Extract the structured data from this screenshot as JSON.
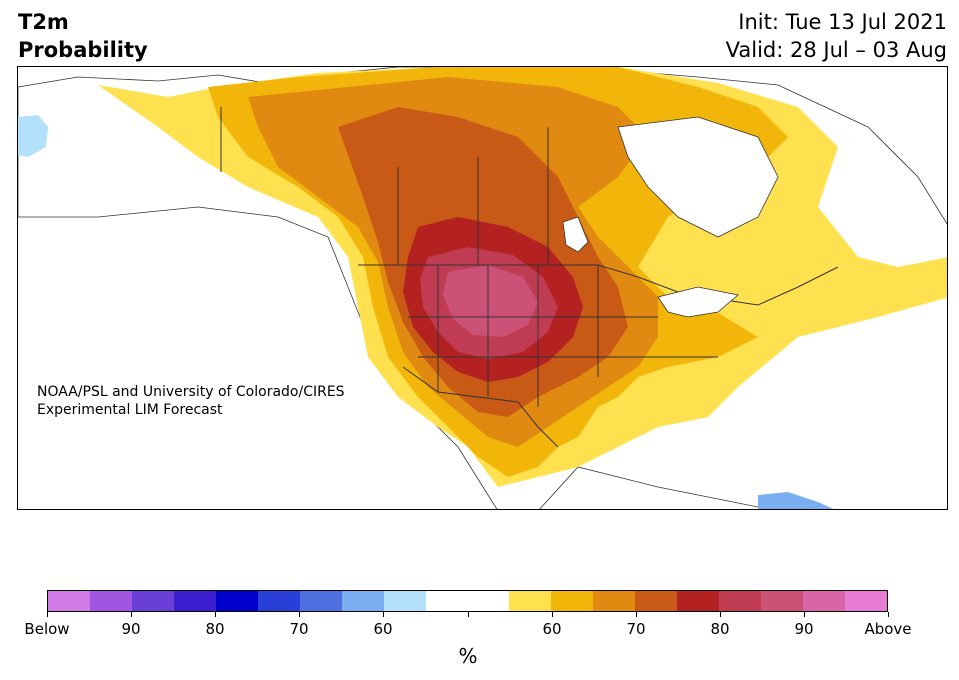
{
  "header": {
    "variable": "T2m",
    "product": "Probability",
    "init": "Init: Tue 13 Jul 2021",
    "valid": "Valid: 28 Jul – 03 Aug"
  },
  "map": {
    "region": "North America",
    "credit_line1": "NOAA/PSL and University of Colorado/CIRES",
    "credit_line2": "Experimental LIM Forecast"
  },
  "colorbar": {
    "colors": [
      "#d07be8",
      "#a056e0",
      "#6a3fd8",
      "#3d1fd0",
      "#0000cc",
      "#2a3fd8",
      "#4d6fe0",
      "#79aff0",
      "#b3e0fb",
      "#ffffff",
      "#ffffff",
      "#ffe150",
      "#f2b60a",
      "#e08a12",
      "#c95a16",
      "#b42121",
      "#c03c52",
      "#cc5176",
      "#d965a6",
      "#e77ad2"
    ],
    "tick_labels": [
      "Below",
      "90",
      "80",
      "70",
      "60",
      "",
      "",
      "60",
      "70",
      "80",
      "90",
      "Above"
    ],
    "units": "%"
  }
}
